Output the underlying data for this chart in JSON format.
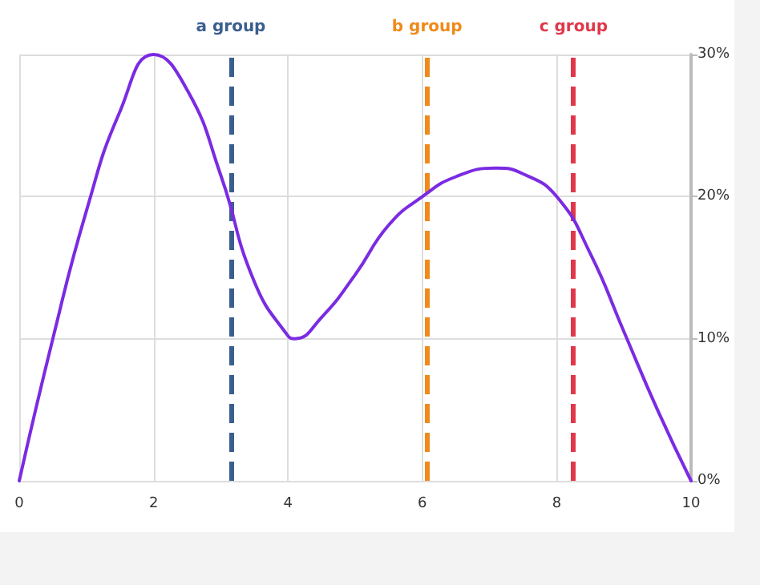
{
  "chart_data": {
    "type": "line",
    "x": [
      0,
      0.5,
      1,
      1.5,
      2,
      2.5,
      3,
      3.5,
      4,
      4.1,
      4.5,
      5,
      5.5,
      6,
      6.5,
      7.1,
      7.5,
      8,
      8.5,
      9,
      9.5,
      10
    ],
    "series": [
      {
        "color": "#7b2be2",
        "values": [
          0,
          10,
          19,
          26,
          30,
          27.5,
          21.5,
          14,
          10.2,
          10,
          11.5,
          14.5,
          18,
          20,
          21.4,
          22,
          21.6,
          20,
          16,
          10.5,
          5,
          0
        ]
      }
    ],
    "xlim": [
      0,
      10
    ],
    "xticks": [
      0,
      2,
      4,
      6,
      8,
      10
    ],
    "ylim": [
      0,
      30
    ],
    "yticks": [
      {
        "value": 0,
        "label": "0%"
      },
      {
        "value": 10,
        "label": "10%"
      },
      {
        "value": 20,
        "label": "20%"
      },
      {
        "value": 30,
        "label": "30%"
      }
    ],
    "ref_lines": [
      {
        "axis": "x",
        "value": 3.15,
        "label": "a group",
        "color": "#3a5f8f",
        "line_style": "dashed"
      },
      {
        "axis": "x",
        "value": 6.07,
        "label": "b group",
        "color": "#f08a1a",
        "line_style": "dashed"
      },
      {
        "axis": "x",
        "value": 8.25,
        "label": "c group",
        "color": "#e0384a",
        "line_style": "dashed"
      }
    ],
    "grid": true,
    "marker": "none",
    "line_style": "solid"
  }
}
